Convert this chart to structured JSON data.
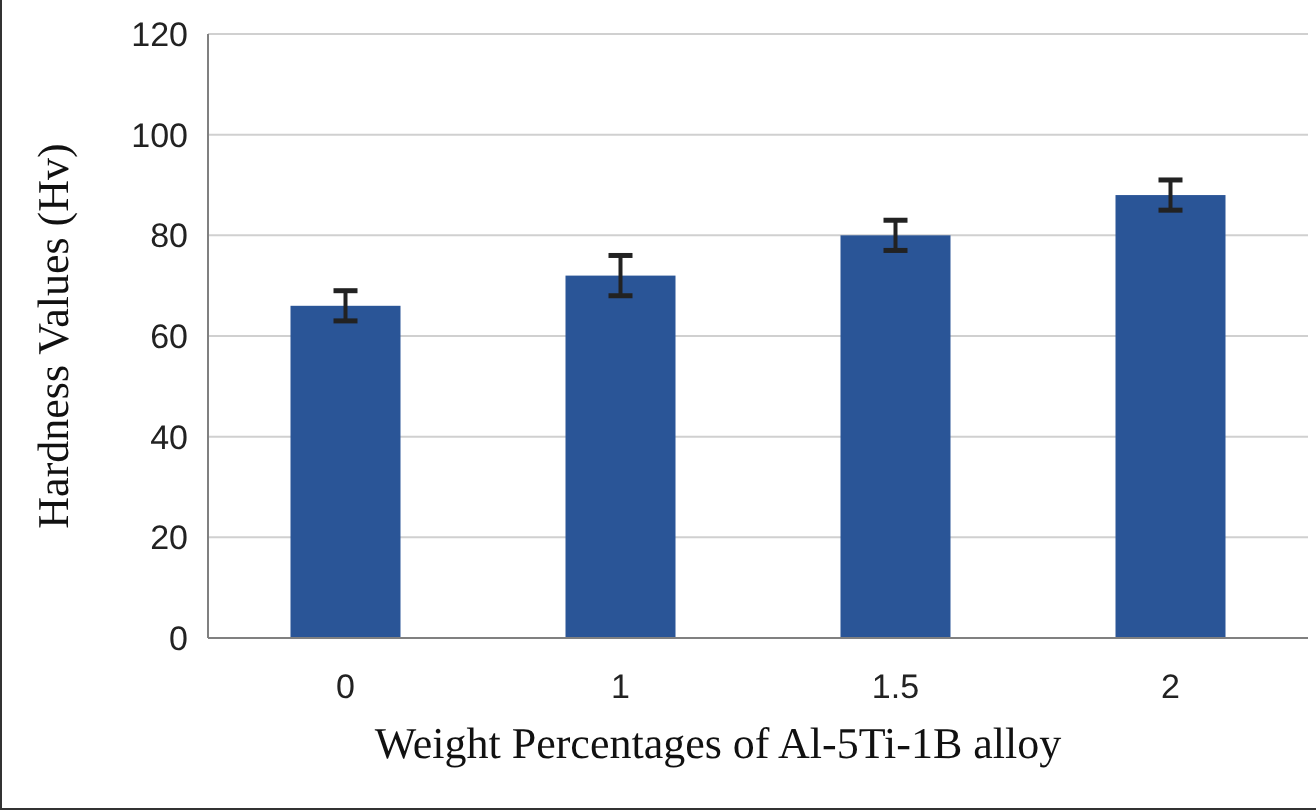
{
  "chart_data": {
    "type": "bar",
    "xlabel": "Weight Percentages of Al-5Ti-1B alloy",
    "ylabel": "Hardness Values (Hv)",
    "categories": [
      "0",
      "1",
      "1.5",
      "2"
    ],
    "values": [
      66,
      72,
      80,
      88
    ],
    "errors": [
      3,
      4,
      3,
      3
    ],
    "color": "#2a5597",
    "ylim": [
      0,
      120
    ],
    "yticks": [
      0,
      20,
      40,
      60,
      80,
      100,
      120
    ],
    "grid": "y"
  }
}
